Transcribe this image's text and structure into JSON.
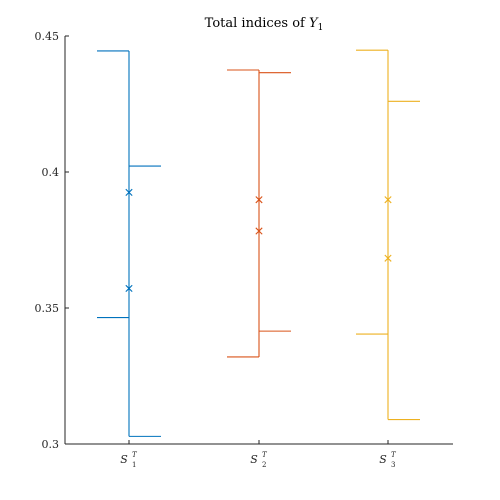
{
  "chart_data": {
    "type": "errorbar-interval",
    "title": "Total indices of ",
    "title_math": "Y",
    "title_sub": "1",
    "xlabel": "",
    "ylabel": "",
    "ylim": [
      0.3,
      0.45
    ],
    "yticks": [
      0.3,
      0.35,
      0.4,
      0.45
    ],
    "ytick_labels": [
      "0.3",
      "0.35",
      "0.4",
      "0.45"
    ],
    "grid": false,
    "categories": [
      {
        "base": "S",
        "sup": "T",
        "sub": "1"
      },
      {
        "base": "S",
        "sup": "T",
        "sub": "2"
      },
      {
        "base": "S",
        "sup": "T",
        "sub": "3"
      }
    ],
    "series": [
      {
        "color": "#0072BD",
        "left_interval": [
          0.3465,
          0.4445
        ],
        "right_interval": [
          0.3028,
          0.4022
        ],
        "markers": [
          0.3925,
          0.3572
        ]
      },
      {
        "color": "#D95319",
        "left_interval": [
          0.332,
          0.4375
        ],
        "right_interval": [
          0.3415,
          0.4365
        ],
        "markers": [
          0.3898,
          0.3783
        ]
      },
      {
        "color": "#EDB120",
        "left_interval": [
          0.3404,
          0.4448
        ],
        "right_interval": [
          0.309,
          0.426
        ],
        "markers": [
          0.3898,
          0.3683
        ]
      }
    ]
  }
}
